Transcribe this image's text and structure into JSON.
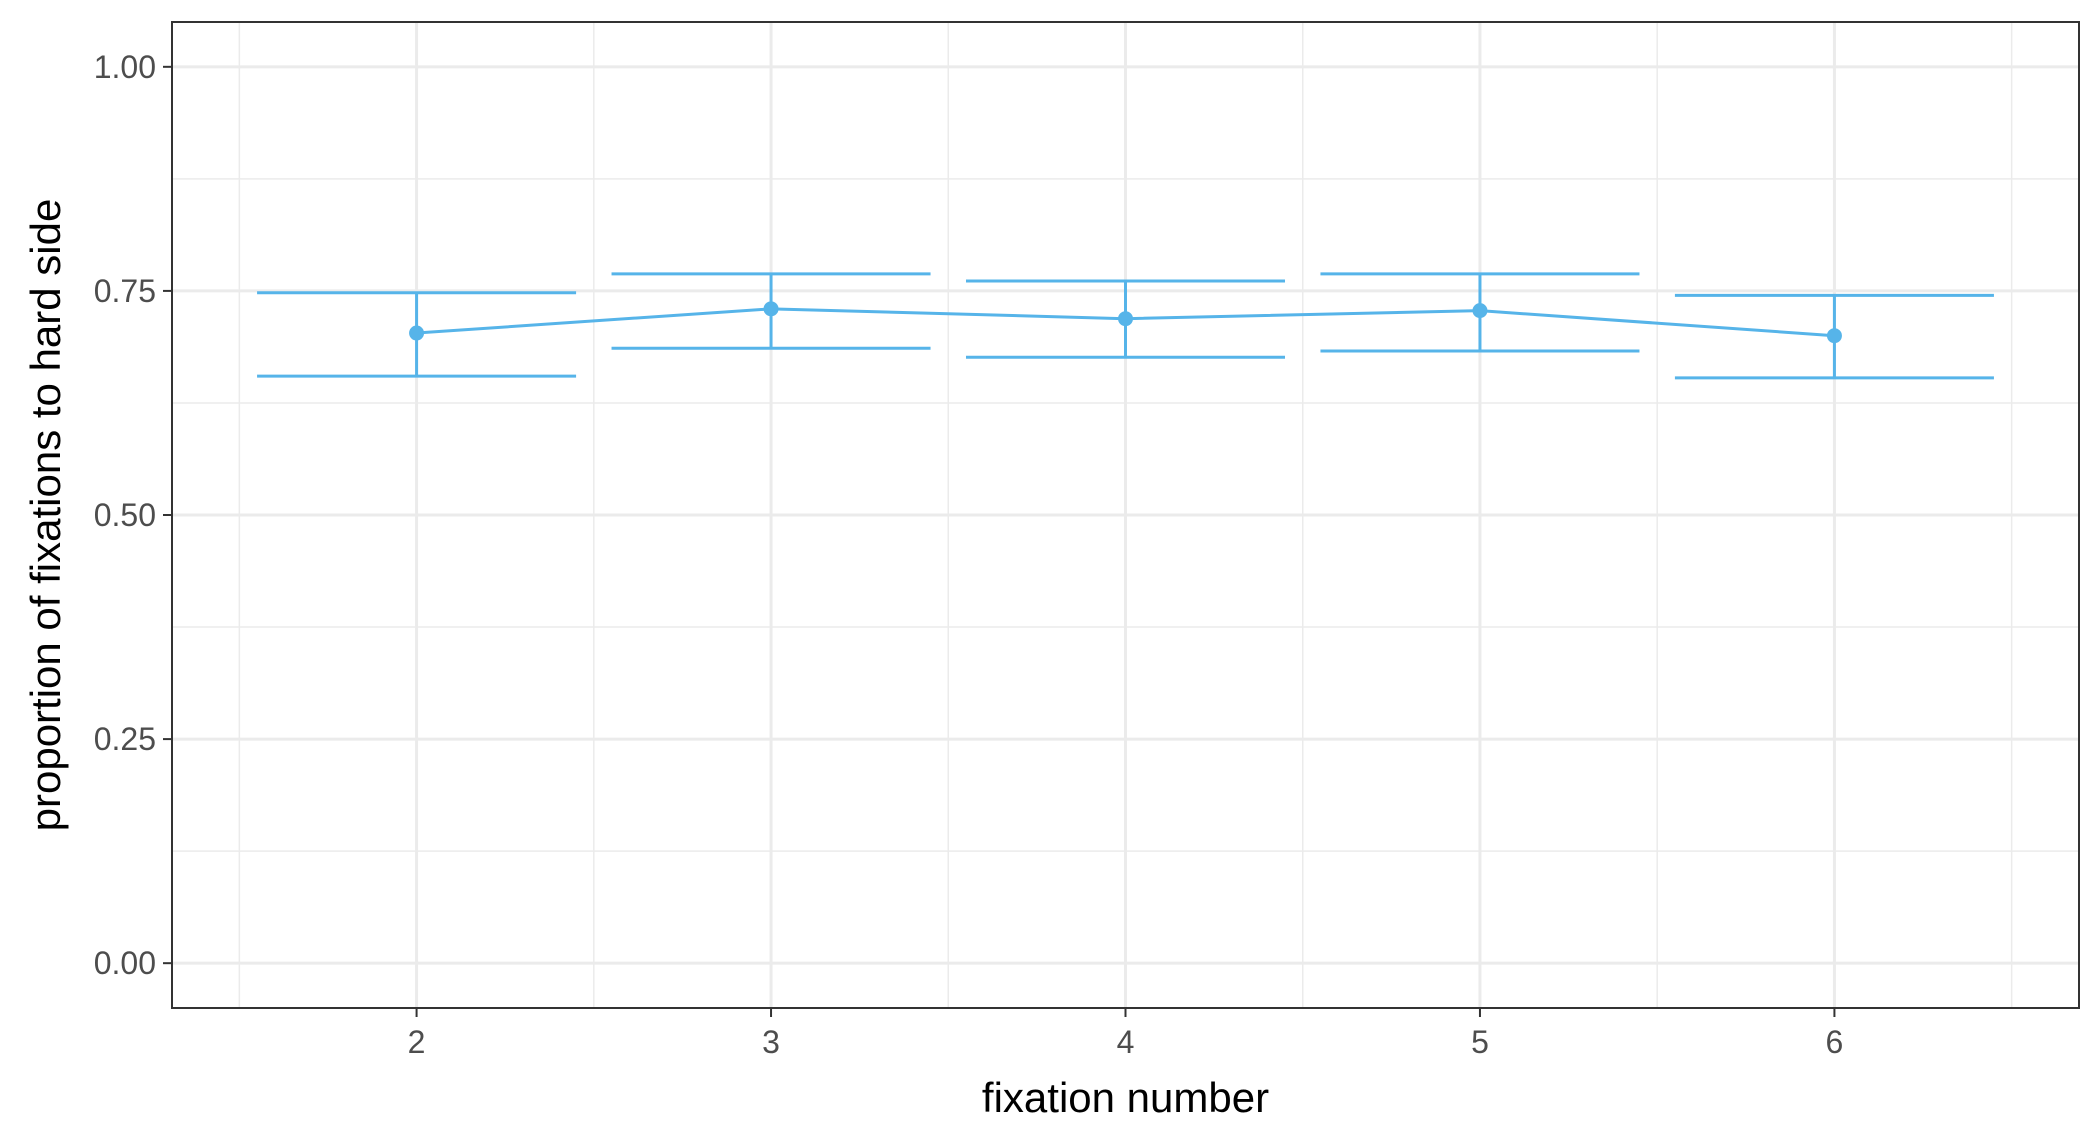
{
  "chart_data": {
    "type": "line",
    "title": "",
    "xlabel": "fixation number",
    "ylabel": "proportion of fixations to hard side",
    "categories": [
      "2",
      "3",
      "4",
      "5",
      "6"
    ],
    "x": [
      2,
      3,
      4,
      5,
      6
    ],
    "xlim": [
      1.31,
      6.69
    ],
    "ylim": [
      -0.05,
      1.05
    ],
    "yticks": [
      0,
      0.25,
      0.5,
      0.75,
      1
    ],
    "ytick_labels": [
      "0.00",
      "0.25",
      "0.50",
      "0.75",
      "1.00"
    ],
    "grid": true,
    "legend": "none",
    "series": [
      {
        "values": [
          0.703,
          0.73,
          0.719,
          0.728,
          0.7
        ],
        "lower": [
          0.655,
          0.686,
          0.676,
          0.683,
          0.653
        ],
        "upper": [
          0.748,
          0.769,
          0.761,
          0.769,
          0.745
        ]
      }
    ],
    "colors": {
      "series": "#56b4e9",
      "grid": "#ebebeb",
      "panel_border": "#333333"
    }
  }
}
